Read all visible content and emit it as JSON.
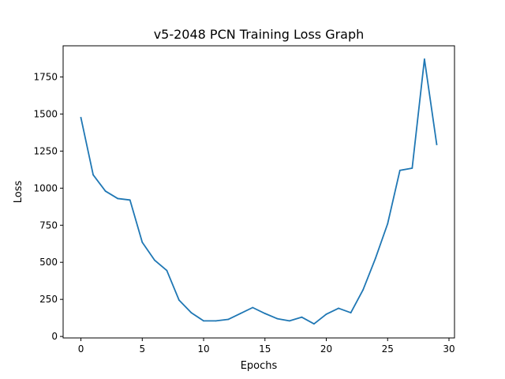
{
  "chart_data": {
    "type": "line",
    "title": "v5-2048 PCN Training Loss Graph",
    "xlabel": "Epochs",
    "ylabel": "Loss",
    "xlim": [
      -1.45,
      30.45
    ],
    "ylim": [
      -10,
      1960
    ],
    "xticks": [
      0,
      5,
      10,
      15,
      20,
      25,
      30
    ],
    "yticks": [
      0,
      250,
      500,
      750,
      1000,
      1250,
      1500,
      1750
    ],
    "x": [
      0,
      1,
      2,
      3,
      4,
      5,
      6,
      7,
      8,
      9,
      10,
      11,
      12,
      13,
      14,
      15,
      16,
      17,
      18,
      19,
      20,
      21,
      22,
      23,
      24,
      25,
      26,
      27,
      28,
      29
    ],
    "series": [
      {
        "color": "#1f77b4",
        "values": [
          1475,
          1090,
          980,
          930,
          920,
          635,
          515,
          445,
          245,
          160,
          105,
          105,
          115,
          155,
          195,
          155,
          120,
          105,
          130,
          85,
          150,
          190,
          160,
          315,
          525,
          760,
          1120,
          1135,
          1870,
          1295
        ]
      }
    ],
    "grid": false,
    "legend": "none"
  }
}
